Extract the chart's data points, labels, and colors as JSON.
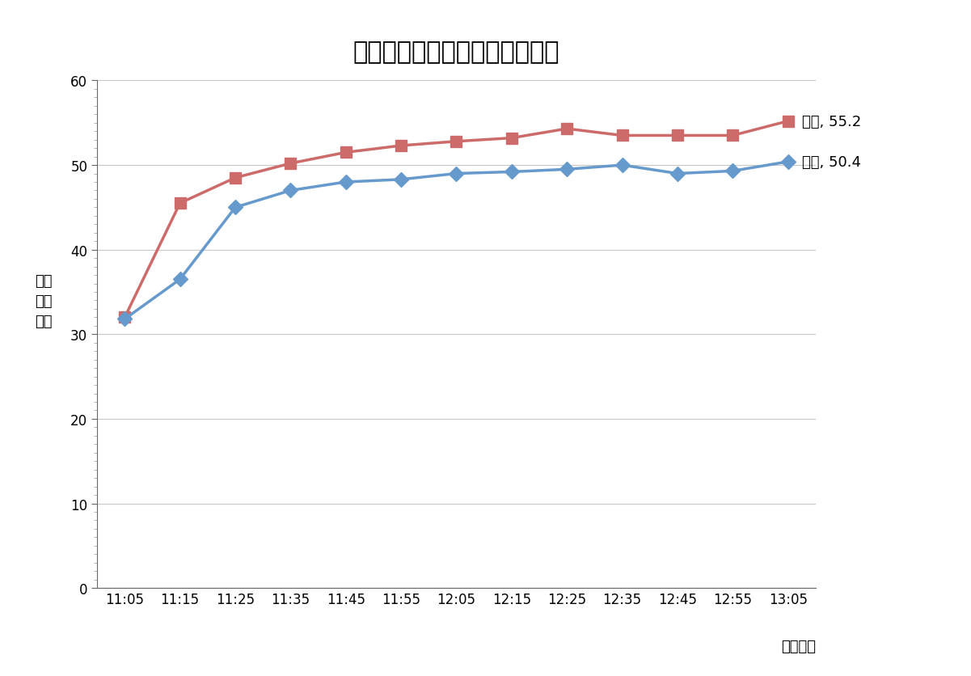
{
  "title": "濃色車と淡色車の車内温度変化",
  "xlabel": "計測時刻",
  "ylabel": "室内\n温度\n（度",
  "x_labels": [
    "11:05",
    "11:15",
    "11:25",
    "11:35",
    "11:45",
    "11:55",
    "12:05",
    "12:15",
    "12:25",
    "12:35",
    "12:45",
    "12:55",
    "13:05"
  ],
  "noshoku_values": [
    32.0,
    45.5,
    48.5,
    50.2,
    51.5,
    52.3,
    52.8,
    53.2,
    54.3,
    53.5,
    53.5,
    53.5,
    55.2
  ],
  "tanshoku_values": [
    31.8,
    36.5,
    45.0,
    47.0,
    48.0,
    48.3,
    49.0,
    49.2,
    49.5,
    50.0,
    49.0,
    49.3,
    50.4
  ],
  "noshoku_color": "#CD6B6B",
  "tanshoku_color": "#6699CC",
  "noshoku_label": "濃色, 55.2",
  "tanshoku_label": "淡色, 50.4",
  "ylim": [
    0,
    60
  ],
  "yticks_major": [
    0,
    10,
    20,
    30,
    40,
    50,
    60
  ],
  "background_color": "#ffffff",
  "grid_color": "#c8c8c8",
  "title_fontsize": 22,
  "label_fontsize": 13,
  "annotation_fontsize": 13,
  "tick_fontsize": 12
}
